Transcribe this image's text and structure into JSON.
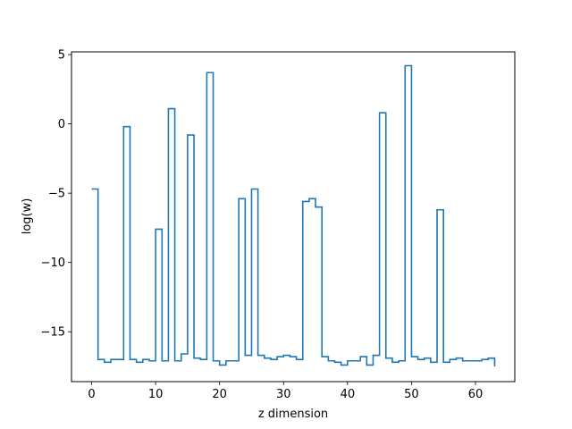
{
  "chart_data": {
    "type": "line",
    "drawstyle": "steps-post",
    "xlabel": "z dimension",
    "ylabel": "log(w)",
    "xlim": [
      -3.15,
      66.15
    ],
    "ylim": [
      -18.6,
      5.2
    ],
    "xticks": [
      0,
      10,
      20,
      30,
      40,
      50,
      60
    ],
    "yticks": [
      5,
      0,
      -5,
      -10,
      -15
    ],
    "grid": false,
    "legend": "none",
    "series": [
      {
        "color": "#1f77b4",
        "x": [
          0,
          1,
          2,
          3,
          4,
          5,
          6,
          7,
          8,
          9,
          10,
          11,
          12,
          13,
          14,
          15,
          16,
          17,
          18,
          19,
          20,
          21,
          22,
          23,
          24,
          25,
          26,
          27,
          28,
          29,
          30,
          31,
          32,
          33,
          34,
          35,
          36,
          37,
          38,
          39,
          40,
          41,
          42,
          43,
          44,
          45,
          46,
          47,
          48,
          49,
          50,
          51,
          52,
          53,
          54,
          55,
          56,
          57,
          58,
          59,
          60,
          61,
          62,
          63
        ],
        "y": [
          -4.7,
          -17.0,
          -17.2,
          -17.0,
          -17.0,
          -0.2,
          -17.0,
          -17.2,
          -17.0,
          -17.1,
          -7.6,
          -17.1,
          1.1,
          -17.1,
          -16.6,
          -0.8,
          -16.9,
          -17.0,
          3.7,
          -17.1,
          -17.4,
          -17.1,
          -17.1,
          -5.4,
          -16.7,
          -4.7,
          -16.7,
          -16.9,
          -17.0,
          -16.8,
          -16.7,
          -16.8,
          -17.0,
          -5.6,
          -5.4,
          -6.0,
          -16.8,
          -17.1,
          -17.2,
          -17.4,
          -17.1,
          -17.1,
          -16.8,
          -17.4,
          -16.7,
          0.8,
          -16.9,
          -17.2,
          -17.1,
          4.2,
          -16.8,
          -17.0,
          -16.9,
          -17.2,
          -6.2,
          -17.2,
          -17.0,
          -16.9,
          -17.1,
          -17.1,
          -17.1,
          -17.0,
          -16.9,
          -17.5
        ]
      }
    ]
  }
}
